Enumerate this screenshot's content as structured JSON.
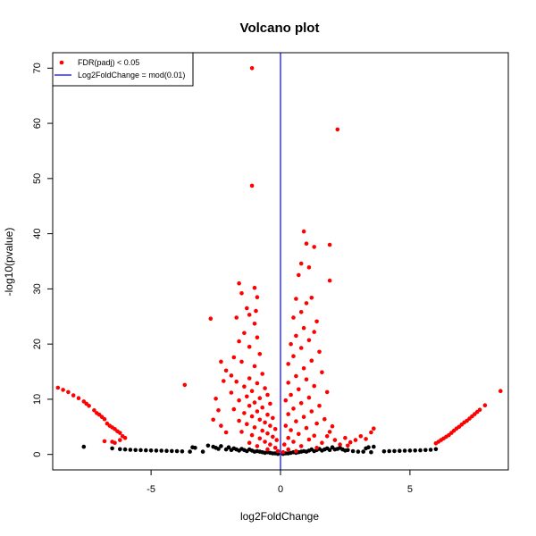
{
  "chart_data": {
    "type": "scatter",
    "title": "Volcano plot",
    "xlabel": "log2FoldChange",
    "ylabel": "-log10(pvalue)",
    "xlim": [
      -8.8,
      8.8
    ],
    "ylim": [
      -2.8,
      72.8
    ],
    "x_ticks": [
      -5,
      0,
      5
    ],
    "y_ticks": [
      0,
      10,
      20,
      30,
      40,
      50,
      60,
      70
    ],
    "grid": false,
    "legend_position": "top-left",
    "legend": [
      {
        "label": "FDR(padj) < 0.05",
        "symbol": "point",
        "color": "#ff0000"
      },
      {
        "label": "Log2FoldChange = mod(0.01)",
        "symbol": "line",
        "color": "#0000ff"
      }
    ],
    "vline": {
      "x": 0,
      "color": "#0000ff"
    },
    "series": [
      {
        "color": "#000000",
        "points": [
          [
            -7.6,
            1.4
          ],
          [
            -6.5,
            1.1
          ],
          [
            -6.2,
            0.95
          ],
          [
            -6.0,
            0.9
          ],
          [
            -5.8,
            0.85
          ],
          [
            -5.6,
            0.8
          ],
          [
            -5.4,
            0.78
          ],
          [
            -5.2,
            0.75
          ],
          [
            -5.0,
            0.72
          ],
          [
            -4.8,
            0.7
          ],
          [
            -4.6,
            0.68
          ],
          [
            -4.4,
            0.65
          ],
          [
            -4.2,
            0.62
          ],
          [
            -4.0,
            0.6
          ],
          [
            -3.8,
            0.55
          ],
          [
            -3.5,
            0.5
          ],
          [
            -3.4,
            1.3
          ],
          [
            -3.3,
            1.2
          ],
          [
            -3.0,
            0.5
          ],
          [
            -2.8,
            1.6
          ],
          [
            -2.6,
            1.4
          ],
          [
            -2.5,
            1.2
          ],
          [
            -2.4,
            1.0
          ],
          [
            -2.3,
            1.5
          ],
          [
            -2.1,
            0.9
          ],
          [
            -2.0,
            1.3
          ],
          [
            -1.9,
            0.8
          ],
          [
            -1.8,
            1.1
          ],
          [
            -1.7,
            0.9
          ],
          [
            -1.6,
            0.7
          ],
          [
            -1.5,
            1.0
          ],
          [
            -1.4,
            0.8
          ],
          [
            -1.3,
            0.6
          ],
          [
            -1.2,
            0.9
          ],
          [
            -1.1,
            0.7
          ],
          [
            -1.0,
            0.5
          ],
          [
            -0.9,
            0.6
          ],
          [
            -0.8,
            0.5
          ],
          [
            -0.7,
            0.4
          ],
          [
            -0.6,
            0.3
          ],
          [
            -0.5,
            0.4
          ],
          [
            -0.4,
            0.3
          ],
          [
            -0.3,
            0.2
          ],
          [
            -0.2,
            0.2
          ],
          [
            -0.1,
            0.1
          ],
          [
            0.1,
            0.1
          ],
          [
            0.2,
            0.2
          ],
          [
            0.3,
            0.2
          ],
          [
            0.4,
            0.3
          ],
          [
            0.5,
            0.4
          ],
          [
            0.6,
            0.3
          ],
          [
            0.7,
            0.4
          ],
          [
            0.8,
            0.5
          ],
          [
            0.9,
            0.6
          ],
          [
            1.0,
            0.5
          ],
          [
            1.1,
            0.7
          ],
          [
            1.2,
            0.9
          ],
          [
            1.3,
            0.6
          ],
          [
            1.4,
            0.8
          ],
          [
            1.5,
            1.0
          ],
          [
            1.6,
            0.7
          ],
          [
            1.7,
            0.9
          ],
          [
            1.8,
            1.1
          ],
          [
            1.9,
            0.8
          ],
          [
            2.0,
            1.3
          ],
          [
            2.1,
            0.9
          ],
          [
            2.2,
            1.0
          ],
          [
            2.3,
            1.2
          ],
          [
            2.4,
            0.9
          ],
          [
            2.5,
            0.7
          ],
          [
            2.6,
            0.8
          ],
          [
            2.8,
            0.6
          ],
          [
            3.0,
            0.5
          ],
          [
            3.2,
            0.5
          ],
          [
            3.5,
            0.4
          ],
          [
            3.3,
            1.1
          ],
          [
            3.4,
            1.3
          ],
          [
            3.6,
            1.4
          ],
          [
            4.0,
            0.55
          ],
          [
            4.2,
            0.6
          ],
          [
            4.4,
            0.62
          ],
          [
            4.6,
            0.65
          ],
          [
            4.8,
            0.68
          ],
          [
            5.0,
            0.7
          ],
          [
            5.2,
            0.72
          ],
          [
            5.4,
            0.75
          ],
          [
            5.6,
            0.8
          ],
          [
            5.8,
            0.85
          ],
          [
            6.0,
            0.95
          ]
        ]
      },
      {
        "name": "FDR(padj) < 0.05",
        "color": "#ff0000",
        "points": [
          [
            -8.6,
            12.1
          ],
          [
            -8.4,
            11.7
          ],
          [
            -8.2,
            11.3
          ],
          [
            -8.0,
            10.7
          ],
          [
            -7.8,
            10.2
          ],
          [
            -7.6,
            9.6
          ],
          [
            -7.5,
            9.2
          ],
          [
            -7.4,
            8.8
          ],
          [
            -7.2,
            8.0
          ],
          [
            -7.1,
            7.5
          ],
          [
            -7.0,
            7.2
          ],
          [
            -6.9,
            6.8
          ],
          [
            -6.8,
            6.4
          ],
          [
            -6.7,
            5.6
          ],
          [
            -6.6,
            5.2
          ],
          [
            -6.5,
            4.9
          ],
          [
            -6.4,
            4.6
          ],
          [
            -6.3,
            4.2
          ],
          [
            -6.2,
            3.9
          ],
          [
            -6.1,
            3.3
          ],
          [
            -6.0,
            3.0
          ],
          [
            -6.2,
            2.6
          ],
          [
            -6.5,
            2.3
          ],
          [
            -6.8,
            2.4
          ],
          [
            -6.4,
            2.1
          ],
          [
            -3.7,
            12.6
          ],
          [
            -2.7,
            24.6
          ],
          [
            -2.3,
            16.8
          ],
          [
            -2.2,
            13.3
          ],
          [
            -2.5,
            10.1
          ],
          [
            -2.4,
            8.0
          ],
          [
            -2.6,
            6.3
          ],
          [
            -2.3,
            5.2
          ],
          [
            -2.1,
            4.0
          ],
          [
            -1.1,
            70.0
          ],
          [
            -1.1,
            48.7
          ],
          [
            -1.6,
            31.0
          ],
          [
            -1.5,
            29.2
          ],
          [
            -1.0,
            30.2
          ],
          [
            -0.9,
            28.5
          ],
          [
            -1.3,
            26.5
          ],
          [
            -1.2,
            25.3
          ],
          [
            -0.95,
            26.0
          ],
          [
            -1.7,
            24.8
          ],
          [
            -1.0,
            23.7
          ],
          [
            -1.4,
            22.0
          ],
          [
            -0.9,
            21.2
          ],
          [
            -1.6,
            20.5
          ],
          [
            -1.2,
            19.5
          ],
          [
            -0.8,
            18.2
          ],
          [
            -1.8,
            17.6
          ],
          [
            -1.5,
            16.8
          ],
          [
            -1.0,
            16.0
          ],
          [
            -2.1,
            15.2
          ],
          [
            -1.9,
            14.3
          ],
          [
            -0.7,
            14.6
          ],
          [
            -1.2,
            13.8
          ],
          [
            -1.7,
            13.2
          ],
          [
            -0.9,
            12.9
          ],
          [
            -1.4,
            12.3
          ],
          [
            -0.6,
            12.0
          ],
          [
            -1.1,
            11.5
          ],
          [
            -1.9,
            11.2
          ],
          [
            -0.5,
            10.8
          ],
          [
            -1.3,
            10.5
          ],
          [
            -0.8,
            10.2
          ],
          [
            -1.6,
            9.8
          ],
          [
            -1.0,
            9.4
          ],
          [
            -0.4,
            9.2
          ],
          [
            -1.2,
            8.8
          ],
          [
            -0.7,
            8.5
          ],
          [
            -1.8,
            8.2
          ],
          [
            -0.9,
            7.8
          ],
          [
            -1.4,
            7.5
          ],
          [
            -0.5,
            7.2
          ],
          [
            -1.1,
            6.9
          ],
          [
            -0.3,
            6.6
          ],
          [
            -0.8,
            6.3
          ],
          [
            -1.6,
            6.1
          ],
          [
            -0.6,
            5.8
          ],
          [
            -1.3,
            5.5
          ],
          [
            -0.4,
            5.2
          ],
          [
            -1.0,
            4.9
          ],
          [
            -0.2,
            4.6
          ],
          [
            -0.7,
            4.3
          ],
          [
            -1.5,
            4.1
          ],
          [
            -0.5,
            3.8
          ],
          [
            -1.1,
            3.5
          ],
          [
            -0.3,
            3.2
          ],
          [
            -0.8,
            2.9
          ],
          [
            -0.15,
            2.6
          ],
          [
            -0.6,
            2.3
          ],
          [
            -1.2,
            2.1
          ],
          [
            -0.4,
            1.8
          ],
          [
            -0.9,
            1.5
          ],
          [
            -0.2,
            1.2
          ],
          [
            -0.5,
            0.9
          ],
          [
            -0.1,
            0.6
          ],
          [
            2.2,
            58.9
          ],
          [
            0.9,
            40.4
          ],
          [
            1.0,
            38.2
          ],
          [
            1.3,
            37.6
          ],
          [
            0.8,
            34.6
          ],
          [
            1.1,
            33.9
          ],
          [
            0.7,
            32.5
          ],
          [
            1.9,
            38.0
          ],
          [
            1.9,
            31.5
          ],
          [
            1.2,
            28.4
          ],
          [
            0.6,
            28.2
          ],
          [
            1.0,
            27.4
          ],
          [
            0.8,
            25.8
          ],
          [
            0.5,
            24.8
          ],
          [
            1.4,
            24.1
          ],
          [
            0.9,
            22.9
          ],
          [
            1.3,
            22.2
          ],
          [
            0.6,
            21.5
          ],
          [
            1.1,
            20.7
          ],
          [
            0.4,
            20.0
          ],
          [
            0.8,
            19.3
          ],
          [
            1.5,
            18.6
          ],
          [
            0.5,
            17.8
          ],
          [
            1.2,
            17.0
          ],
          [
            0.3,
            16.4
          ],
          [
            0.9,
            15.6
          ],
          [
            1.6,
            14.9
          ],
          [
            0.6,
            14.2
          ],
          [
            1.0,
            13.6
          ],
          [
            0.3,
            13.0
          ],
          [
            1.3,
            12.4
          ],
          [
            0.7,
            11.8
          ],
          [
            1.8,
            11.3
          ],
          [
            0.4,
            10.8
          ],
          [
            1.1,
            10.3
          ],
          [
            0.2,
            9.8
          ],
          [
            0.8,
            9.3
          ],
          [
            1.5,
            8.8
          ],
          [
            0.5,
            8.3
          ],
          [
            1.2,
            7.8
          ],
          [
            0.3,
            7.3
          ],
          [
            0.9,
            6.8
          ],
          [
            1.7,
            6.4
          ],
          [
            0.6,
            6.0
          ],
          [
            1.4,
            5.6
          ],
          [
            0.2,
            5.2
          ],
          [
            1.0,
            4.8
          ],
          [
            0.4,
            4.4
          ],
          [
            1.9,
            4.1
          ],
          [
            0.7,
            3.7
          ],
          [
            1.3,
            3.4
          ],
          [
            0.3,
            3.0
          ],
          [
            1.1,
            2.7
          ],
          [
            0.5,
            2.3
          ],
          [
            1.6,
            2.1
          ],
          [
            0.15,
            1.8
          ],
          [
            0.8,
            1.5
          ],
          [
            1.4,
            1.2
          ],
          [
            0.3,
            0.9
          ],
          [
            0.6,
            0.6
          ],
          [
            0.1,
            0.4
          ],
          [
            2.0,
            5.1
          ],
          [
            1.8,
            3.3
          ],
          [
            2.1,
            2.6
          ],
          [
            2.5,
            3.0
          ],
          [
            2.7,
            2.2
          ],
          [
            2.9,
            2.6
          ],
          [
            3.1,
            3.3
          ],
          [
            3.3,
            2.8
          ],
          [
            3.5,
            4.0
          ],
          [
            3.6,
            4.7
          ],
          [
            2.3,
            1.8
          ],
          [
            2.6,
            1.6
          ],
          [
            6.0,
            2.0
          ],
          [
            6.1,
            2.3
          ],
          [
            6.2,
            2.6
          ],
          [
            6.3,
            2.9
          ],
          [
            6.4,
            3.2
          ],
          [
            6.5,
            3.5
          ],
          [
            6.6,
            3.9
          ],
          [
            6.7,
            4.3
          ],
          [
            6.8,
            4.7
          ],
          [
            6.9,
            5.0
          ],
          [
            7.0,
            5.4
          ],
          [
            7.1,
            5.8
          ],
          [
            7.2,
            6.1
          ],
          [
            7.3,
            6.5
          ],
          [
            7.4,
            6.9
          ],
          [
            7.5,
            7.3
          ],
          [
            7.6,
            7.7
          ],
          [
            7.7,
            8.1
          ],
          [
            7.9,
            8.9
          ],
          [
            8.5,
            11.5
          ]
        ]
      }
    ]
  }
}
